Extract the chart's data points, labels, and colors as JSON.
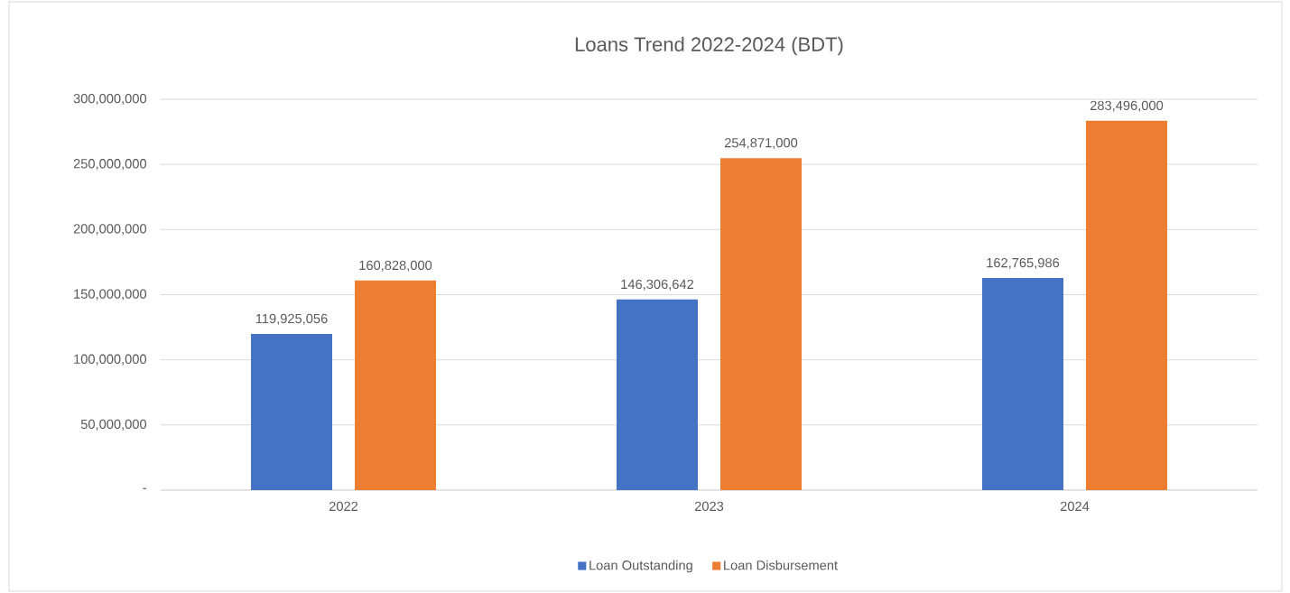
{
  "chart_data": {
    "type": "bar",
    "title": "Loans Trend 2022-2024 (BDT)",
    "categories": [
      "2022",
      "2023",
      "2024"
    ],
    "series": [
      {
        "name": "Loan Outstanding",
        "color": "#4472c4",
        "values": [
          119925056,
          146306642,
          162765986
        ],
        "value_labels": [
          "119,925,056",
          "146,306,642",
          "162,765,986"
        ]
      },
      {
        "name": "Loan Disbursement",
        "color": "#ed7d31",
        "values": [
          160828000,
          254871000,
          283496000
        ],
        "value_labels": [
          "160,828,000",
          "254,871,000",
          "283,496,000"
        ]
      }
    ],
    "ylim": [
      0,
      300000000
    ],
    "yticks": [
      {
        "value": 0,
        "label": "-"
      },
      {
        "value": 50000000,
        "label": "50,000,000"
      },
      {
        "value": 100000000,
        "label": "100,000,000"
      },
      {
        "value": 150000000,
        "label": "150,000,000"
      },
      {
        "value": 200000000,
        "label": "200,000,000"
      },
      {
        "value": 250000000,
        "label": "250,000,000"
      },
      {
        "value": 300000000,
        "label": "300,000,000"
      }
    ],
    "grid": "y",
    "legend": "bottom"
  }
}
